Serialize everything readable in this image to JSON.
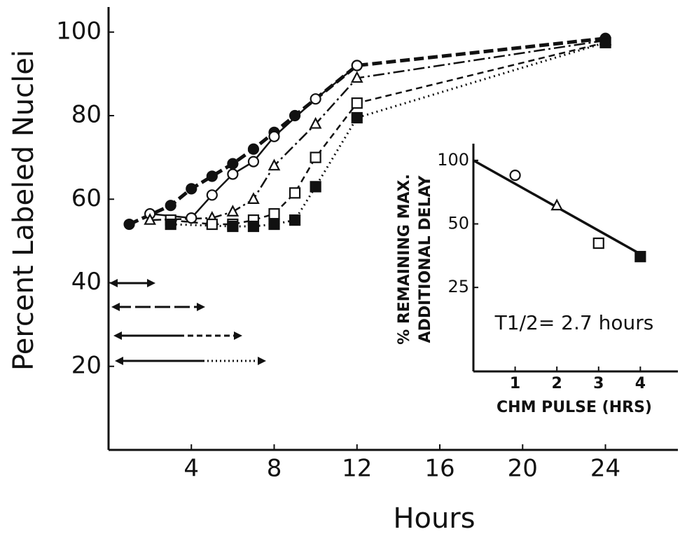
{
  "chart_data": [
    {
      "type": "line",
      "y_label": "Percent Labeled Nuclei",
      "x_label": "Hours",
      "xlim": [
        0,
        27.5
      ],
      "ylim": [
        0,
        106
      ],
      "xticks": [
        4,
        8,
        12,
        16,
        20,
        24
      ],
      "yticks": [
        20,
        40,
        60,
        80,
        100
      ],
      "series": [
        {
          "marker": "filled-circle",
          "dash": "14 6",
          "width": 5,
          "color": "#111111",
          "x": [
            1,
            3,
            4,
            5,
            6,
            7,
            8,
            9,
            12,
            24
          ],
          "values": [
            54,
            58.5,
            62.5,
            65.5,
            68.5,
            72,
            76,
            80,
            92,
            98.5
          ]
        },
        {
          "marker": "open-circle",
          "dash": "none",
          "width": 2.5,
          "color": "#111111",
          "x": [
            2,
            4,
            5,
            6,
            7,
            8,
            10,
            12
          ],
          "values": [
            56.5,
            55.5,
            61,
            66,
            69,
            75,
            84,
            92
          ]
        },
        {
          "marker": "open-triangle",
          "dash": "16 5 3 5",
          "width": 2.5,
          "color": "#111111",
          "x": [
            2,
            5,
            6,
            7,
            8,
            10,
            12,
            24
          ],
          "values": [
            55,
            55.5,
            57,
            60,
            68,
            78,
            89,
            98
          ]
        },
        {
          "marker": "open-square",
          "dash": "9 6",
          "width": 2.5,
          "color": "#111111",
          "x": [
            3,
            5,
            6,
            7,
            8,
            9,
            10,
            12,
            24
          ],
          "values": [
            55,
            54,
            54,
            55,
            56.5,
            61.5,
            70,
            83,
            97.5
          ]
        },
        {
          "marker": "filled-square",
          "dash": "2 5",
          "width": 3,
          "color": "#111111",
          "x": [
            3,
            6,
            7,
            8,
            9,
            10,
            12,
            24
          ],
          "values": [
            54,
            53.5,
            53.5,
            54,
            55,
            63,
            79.5,
            97.5
          ]
        }
      ]
    },
    {
      "type": "scatter",
      "log_y": true,
      "y_label": [
        "% REMAINING MAX.",
        "ADDITIONAL DELAY"
      ],
      "x_label": "CHM PULSE (HRS)",
      "annotation": "T1/2= 2.7 hours",
      "xlim": [
        0,
        4.9
      ],
      "ylim": [
        10,
        120
      ],
      "xticks": [
        1,
        2,
        3,
        4
      ],
      "yticks": [
        25,
        50,
        100
      ],
      "x": [
        1,
        2,
        3,
        4
      ],
      "values": [
        85,
        61,
        40.5,
        35
      ],
      "markers": [
        "open-circle",
        "open-triangle",
        "open-square",
        "filled-square"
      ],
      "fit": {
        "x": [
          0,
          4
        ],
        "values": [
          100,
          36
        ]
      },
      "color": "#111111"
    }
  ]
}
